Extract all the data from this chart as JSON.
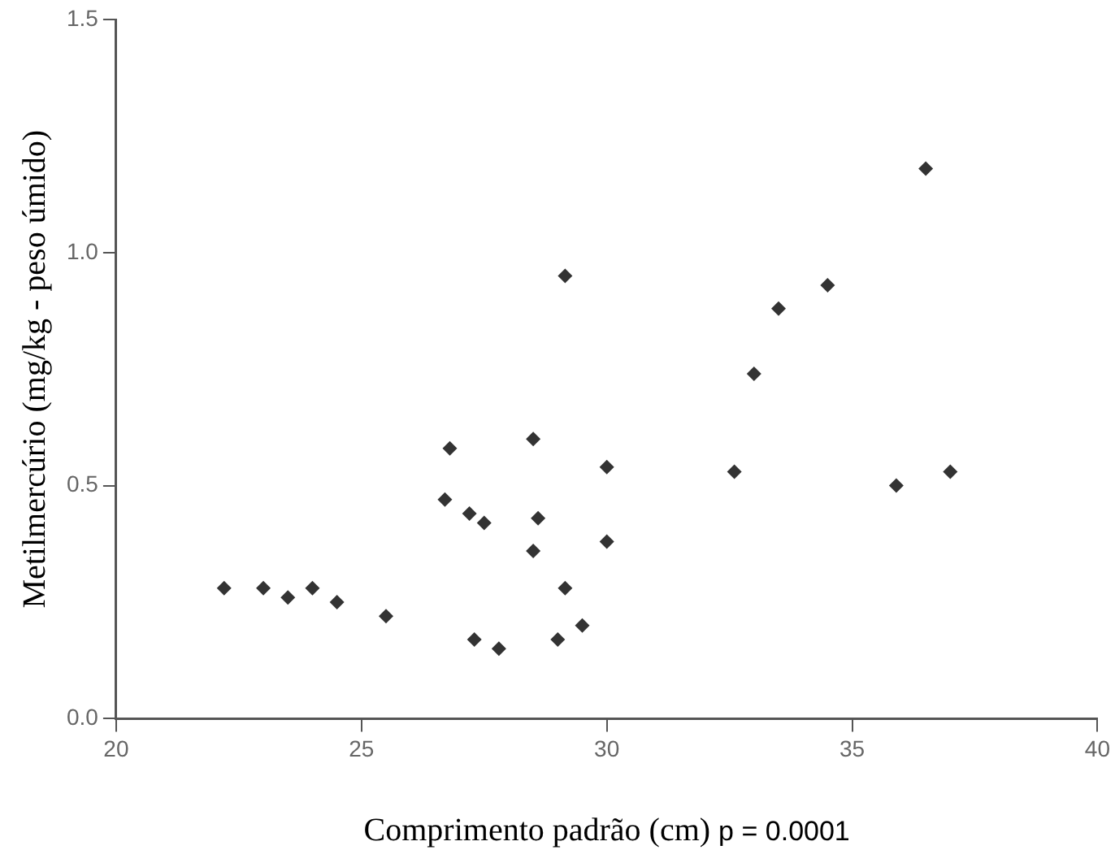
{
  "chart_data": {
    "type": "scatter",
    "xlabel": "Comprimento padrão (cm)",
    "ylabel": "Metilmercúrio (mg/kg - peso úmido)",
    "annotations": [
      "p = 0.0001"
    ],
    "xlim": [
      20,
      40
    ],
    "xticks": [
      20,
      25,
      30,
      35,
      40
    ],
    "ylim": [
      0,
      1.5
    ],
    "yticks": [
      {
        "value": 0,
        "label": "0.0"
      },
      {
        "value": 0.5,
        "label": "0.5"
      },
      {
        "value": 1,
        "label": "1.0"
      },
      {
        "value": 1.5,
        "label": "1.5"
      }
    ],
    "grid": false,
    "legend": false,
    "marker": "diamond",
    "series": [
      {
        "color": "#333333",
        "x": [
          22.2,
          23.0,
          23.5,
          24.0,
          24.5,
          25.5,
          26.7,
          26.8,
          27.2,
          27.5,
          27.3,
          27.8,
          28.5,
          28.6,
          28.5,
          29.15,
          29.15,
          29.0,
          29.5,
          30.0,
          30.0,
          36.5,
          34.5,
          33.5,
          33.0,
          32.6,
          35.9,
          37.0
        ],
        "values": [
          0.28,
          0.28,
          0.26,
          0.28,
          0.25,
          0.22,
          0.47,
          0.58,
          0.44,
          0.42,
          0.17,
          0.15,
          0.6,
          0.43,
          0.36,
          0.95,
          0.28,
          0.17,
          0.2,
          0.54,
          0.38,
          1.18,
          0.93,
          0.88,
          0.74,
          0.53,
          0.5,
          0.53
        ]
      }
    ]
  }
}
